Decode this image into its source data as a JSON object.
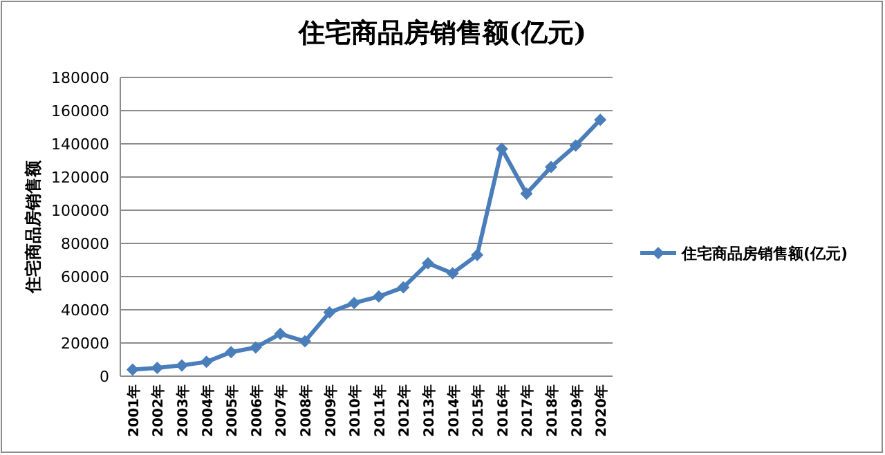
{
  "chart_data": {
    "type": "line",
    "title": "住宅商品房销售额(亿元)",
    "ylabel": "住宅商品房销售额",
    "categories": [
      "2001年",
      "2002年",
      "2003年",
      "2004年",
      "2005年",
      "2006年",
      "2007年",
      "2008年",
      "2009年",
      "2010年",
      "2011年",
      "2012年",
      "2013年",
      "2014年",
      "2015年",
      "2016年",
      "2017年",
      "2018年",
      "2019年",
      "2020年"
    ],
    "series": [
      {
        "name": "住宅商品房销售额(亿元)",
        "color": "#4a7ebb",
        "values": [
          4000,
          5000,
          6500,
          8600,
          14500,
          17300,
          25500,
          21000,
          38400,
          44100,
          48000,
          53500,
          68000,
          62000,
          73000,
          137000,
          110000,
          126000,
          139000,
          154500
        ]
      }
    ],
    "ylim": [
      0,
      180000
    ],
    "yticks": [
      0,
      20000,
      40000,
      60000,
      80000,
      100000,
      120000,
      140000,
      160000,
      180000
    ],
    "grid": "y",
    "legend": "right",
    "marker": "diamond",
    "line_style": "solid"
  }
}
